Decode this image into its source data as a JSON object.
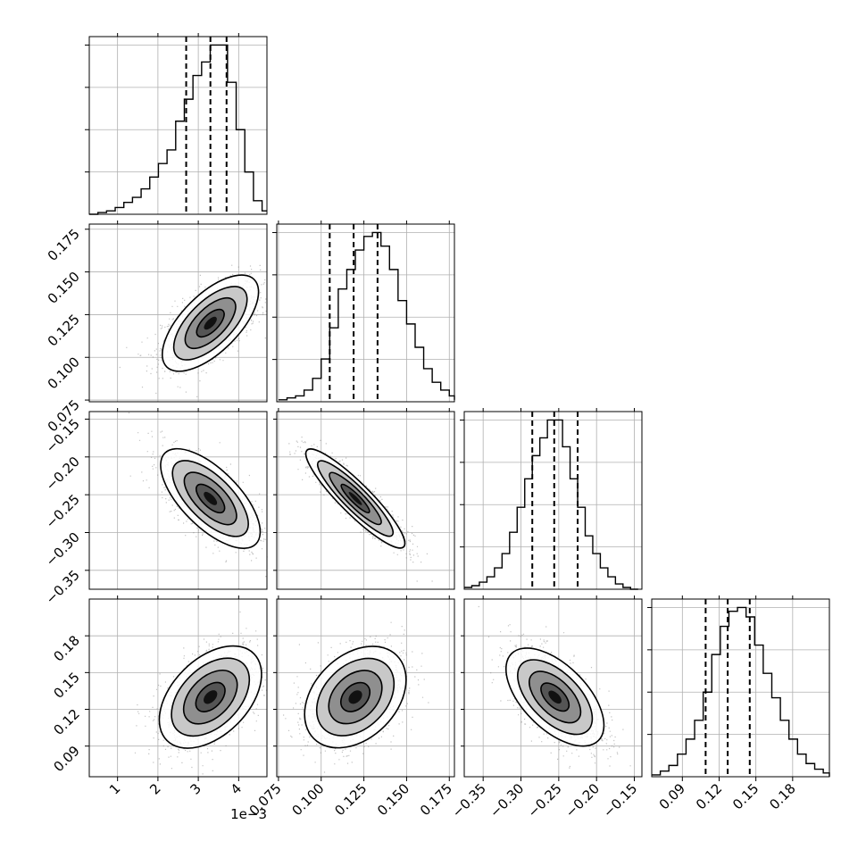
{
  "chart_data": {
    "type": "corner",
    "parameters": 4,
    "axis_offsets": [
      {
        "axis": 0,
        "text": "1e−3"
      }
    ],
    "histograms": [
      {
        "param": 0,
        "edges_start": 0.3,
        "bin_width": 0.214,
        "counts": [
          0,
          1,
          2,
          4,
          7,
          10,
          15,
          22,
          30,
          38,
          55,
          68,
          82,
          90,
          100,
          100,
          78,
          50,
          25,
          8,
          2
        ],
        "quantiles": [
          2.7,
          3.3,
          3.7
        ],
        "xlim": [
          0.3,
          4.7
        ],
        "ticks": [
          1,
          2,
          3,
          4
        ],
        "tick_labels": [
          "1",
          "2",
          "3",
          "4"
        ]
      },
      {
        "param": 1,
        "edges_start": 0.075,
        "bin_width": 0.005,
        "counts": [
          1,
          2,
          3,
          6,
          12,
          22,
          38,
          58,
          68,
          78,
          85,
          87,
          80,
          68,
          52,
          40,
          28,
          17,
          10,
          6,
          3,
          2,
          1
        ],
        "quantiles": [
          0.105,
          0.119,
          0.133
        ],
        "xlim": [
          0.074,
          0.178
        ],
        "ticks": [
          0.075,
          0.1,
          0.125,
          0.15,
          0.175
        ],
        "tick_labels": [
          "0.075",
          "0.100",
          "0.125",
          "0.150",
          "0.175"
        ]
      },
      {
        "param": 2,
        "edges_start": -0.375,
        "bin_width": 0.01,
        "counts": [
          1,
          2,
          4,
          7,
          12,
          20,
          32,
          46,
          62,
          75,
          85,
          95,
          95,
          80,
          62,
          46,
          30,
          20,
          12,
          7,
          3,
          1,
          0
        ],
        "quantiles": [
          -0.285,
          -0.256,
          -0.225
        ],
        "xlim": [
          -0.375,
          -0.14
        ],
        "ticks": [
          -0.35,
          -0.3,
          -0.25,
          -0.2,
          -0.15
        ],
        "tick_labels": [
          "−0.35",
          "−0.30",
          "−0.25",
          "−0.20",
          "−0.15"
        ]
      },
      {
        "param": 3,
        "edges_start": 0.065,
        "bin_width": 0.007,
        "counts": [
          1,
          3,
          6,
          12,
          20,
          30,
          45,
          65,
          80,
          88,
          90,
          85,
          70,
          55,
          42,
          30,
          20,
          12,
          7,
          4,
          2,
          1,
          0
        ],
        "quantiles": [
          0.109,
          0.127,
          0.145
        ],
        "xlim": [
          0.065,
          0.21
        ],
        "ticks": [
          0.09,
          0.12,
          0.15,
          0.18
        ],
        "tick_labels": [
          "0.09",
          "0.12",
          "0.15",
          "0.18"
        ]
      }
    ],
    "y_axes": [
      {
        "row": 1,
        "ylim": [
          0.074,
          0.178
        ],
        "ticks": [
          0.075,
          0.1,
          0.125,
          0.15,
          0.175
        ],
        "tick_labels": [
          "0.075",
          "0.100",
          "0.125",
          "0.150",
          "0.175"
        ]
      },
      {
        "row": 2,
        "ylim": [
          -0.375,
          -0.14
        ],
        "ticks": [
          -0.35,
          -0.3,
          -0.25,
          -0.2,
          -0.15
        ],
        "tick_labels": [
          "−0.35",
          "−0.30",
          "−0.25",
          "−0.20",
          "−0.15"
        ]
      },
      {
        "row": 3,
        "ylim": [
          0.065,
          0.21
        ],
        "ticks": [
          0.09,
          0.12,
          0.15,
          0.18
        ],
        "tick_labels": [
          "0.09",
          "0.12",
          "0.15",
          "0.18"
        ]
      }
    ],
    "scatter_panels": [
      {
        "row": 1,
        "col": 0,
        "mean": [
          3.3,
          0.12
        ],
        "sd": [
          0.6,
          0.012
        ],
        "corr": 0.6
      },
      {
        "row": 2,
        "col": 0,
        "mean": [
          3.3,
          -0.255
        ],
        "sd": [
          0.6,
          0.03
        ],
        "corr": -0.65
      },
      {
        "row": 2,
        "col": 1,
        "mean": [
          0.12,
          -0.255
        ],
        "sd": [
          0.014,
          0.03
        ],
        "corr": -0.9
      },
      {
        "row": 3,
        "col": 0,
        "mean": [
          3.3,
          0.13
        ],
        "sd": [
          0.6,
          0.02
        ],
        "corr": 0.45
      },
      {
        "row": 3,
        "col": 1,
        "mean": [
          0.12,
          0.13
        ],
        "sd": [
          0.014,
          0.02
        ],
        "corr": 0.35
      },
      {
        "row": 3,
        "col": 2,
        "mean": [
          -0.255,
          0.13
        ],
        "sd": [
          0.03,
          0.02
        ],
        "corr": -0.6
      }
    ],
    "grid": true,
    "colors": {
      "line": "#000000",
      "grid": "#b0b0b0",
      "points": "#777777"
    }
  }
}
